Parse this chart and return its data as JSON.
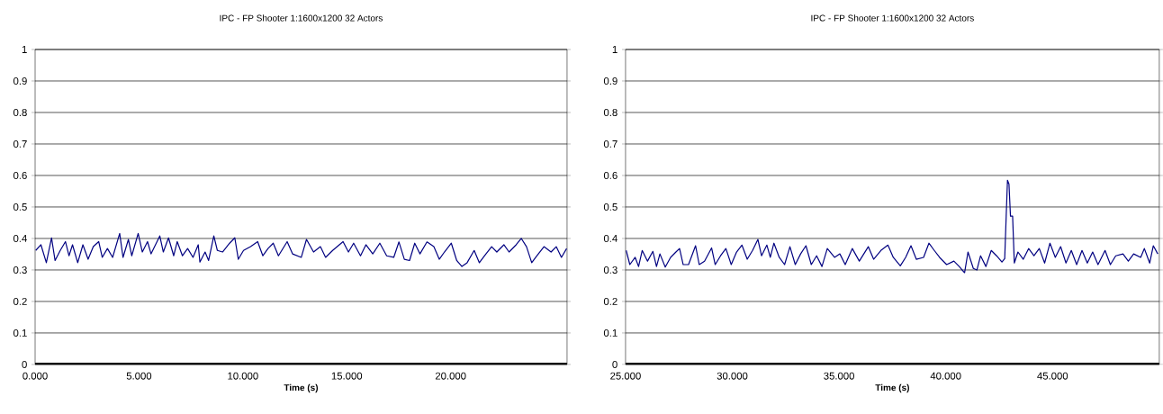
{
  "chart_data": [
    {
      "type": "line",
      "title": "IPC  - FP Shooter 1:1600x1200 32 Actors",
      "xlabel": "Time (s)",
      "grid": "y",
      "marker": "none",
      "line_style": "solid",
      "xlim": [
        0,
        25.6
      ],
      "ylim": [
        0,
        1
      ],
      "xticks": [
        {
          "value": 0,
          "label": "0.000"
        },
        {
          "value": 5,
          "label": "5.000"
        },
        {
          "value": 10,
          "label": "10.000"
        },
        {
          "value": 15,
          "label": "15.000"
        },
        {
          "value": 20,
          "label": "20.000"
        }
      ],
      "yticks": [
        0,
        0.1,
        0.2,
        0.3,
        0.4,
        0.5,
        0.6,
        0.7,
        0.8,
        0.9,
        1
      ],
      "series": [
        {
          "color": "#000080",
          "x": [
            0.03,
            0.28,
            0.54,
            0.79,
            0.96,
            1.21,
            1.46,
            1.63,
            1.8,
            2.05,
            2.3,
            2.55,
            2.8,
            3.06,
            3.23,
            3.48,
            3.73,
            4.07,
            4.23,
            4.49,
            4.65,
            4.96,
            5.16,
            5.41,
            5.58,
            6.0,
            6.17,
            6.42,
            6.67,
            6.84,
            7.09,
            7.34,
            7.6,
            7.85,
            7.93,
            8.18,
            8.35,
            8.6,
            8.77,
            9.02,
            9.36,
            9.61,
            9.78,
            10.03,
            10.37,
            10.71,
            10.96,
            11.21,
            11.46,
            11.71,
            12.13,
            12.39,
            12.81,
            13.06,
            13.4,
            13.73,
            13.98,
            14.32,
            14.82,
            15.08,
            15.33,
            15.66,
            15.92,
            16.25,
            16.59,
            16.92,
            17.26,
            17.51,
            17.77,
            18.02,
            18.27,
            18.52,
            18.86,
            19.19,
            19.45,
            19.7,
            20.03,
            20.29,
            20.54,
            20.79,
            21.13,
            21.38,
            21.63,
            21.97,
            22.22,
            22.56,
            22.81,
            23.15,
            23.4,
            23.65,
            23.9,
            24.15,
            24.49,
            24.83,
            25.08,
            25.33,
            25.58
          ],
          "values": [
            0.362,
            0.38,
            0.323,
            0.402,
            0.33,
            0.362,
            0.39,
            0.345,
            0.38,
            0.323,
            0.38,
            0.334,
            0.374,
            0.39,
            0.34,
            0.368,
            0.34,
            0.416,
            0.34,
            0.397,
            0.345,
            0.416,
            0.357,
            0.39,
            0.351,
            0.408,
            0.357,
            0.402,
            0.345,
            0.39,
            0.345,
            0.368,
            0.34,
            0.38,
            0.325,
            0.357,
            0.33,
            0.408,
            0.362,
            0.357,
            0.385,
            0.402,
            0.334,
            0.362,
            0.374,
            0.39,
            0.345,
            0.368,
            0.385,
            0.345,
            0.39,
            0.351,
            0.34,
            0.397,
            0.357,
            0.374,
            0.34,
            0.362,
            0.39,
            0.357,
            0.385,
            0.345,
            0.38,
            0.351,
            0.385,
            0.345,
            0.34,
            0.389,
            0.334,
            0.33,
            0.385,
            0.351,
            0.389,
            0.374,
            0.334,
            0.357,
            0.385,
            0.33,
            0.311,
            0.323,
            0.362,
            0.323,
            0.345,
            0.374,
            0.357,
            0.38,
            0.357,
            0.38,
            0.4,
            0.374,
            0.323,
            0.345,
            0.374,
            0.357,
            0.374,
            0.34,
            0.368
          ]
        }
      ]
    },
    {
      "type": "line",
      "title": "IPC  - FP Shooter 1:1600x1200 32 Actors",
      "xlabel": "Time (s)",
      "grid": "y",
      "marker": "none",
      "line_style": "solid",
      "xlim": [
        25,
        50
      ],
      "ylim": [
        0,
        1
      ],
      "xticks": [
        {
          "value": 25,
          "label": "25.000"
        },
        {
          "value": 30,
          "label": "30.000"
        },
        {
          "value": 35,
          "label": "35.000"
        },
        {
          "value": 40,
          "label": "40.000"
        },
        {
          "value": 45,
          "label": "45.000"
        }
      ],
      "yticks": [
        0,
        0.1,
        0.2,
        0.3,
        0.4,
        0.5,
        0.6,
        0.7,
        0.8,
        0.9,
        1
      ],
      "series": [
        {
          "color": "#000080",
          "x": [
            25.03,
            25.2,
            25.45,
            25.61,
            25.78,
            26.03,
            26.28,
            26.45,
            26.61,
            26.86,
            27.11,
            27.36,
            27.53,
            27.7,
            27.95,
            28.28,
            28.45,
            28.7,
            29.03,
            29.2,
            29.45,
            29.7,
            29.95,
            30.2,
            30.45,
            30.7,
            30.95,
            31.2,
            31.37,
            31.62,
            31.78,
            31.95,
            32.2,
            32.45,
            32.7,
            32.95,
            33.2,
            33.45,
            33.7,
            33.95,
            34.2,
            34.45,
            34.79,
            35.04,
            35.29,
            35.62,
            35.95,
            36.37,
            36.62,
            36.96,
            37.29,
            37.54,
            37.87,
            38.12,
            38.37,
            38.62,
            38.96,
            39.21,
            39.46,
            39.71,
            40.04,
            40.38,
            40.63,
            40.88,
            41.04,
            41.29,
            41.46,
            41.63,
            41.88,
            42.13,
            42.38,
            42.63,
            42.76,
            42.83,
            42.89,
            42.96,
            43.03,
            43.13,
            43.21,
            43.38,
            43.63,
            43.88,
            44.13,
            44.38,
            44.63,
            44.88,
            45.13,
            45.38,
            45.63,
            45.88,
            46.13,
            46.38,
            46.63,
            46.88,
            47.13,
            47.46,
            47.71,
            47.96,
            48.3,
            48.55,
            48.8,
            49.13,
            49.3,
            49.55,
            49.72,
            49.93
          ],
          "values": [
            0.362,
            0.317,
            0.34,
            0.311,
            0.362,
            0.328,
            0.359,
            0.311,
            0.351,
            0.309,
            0.34,
            0.357,
            0.368,
            0.317,
            0.317,
            0.377,
            0.317,
            0.328,
            0.37,
            0.317,
            0.345,
            0.368,
            0.317,
            0.357,
            0.379,
            0.334,
            0.362,
            0.397,
            0.345,
            0.379,
            0.34,
            0.385,
            0.34,
            0.317,
            0.374,
            0.317,
            0.351,
            0.377,
            0.317,
            0.345,
            0.311,
            0.368,
            0.34,
            0.351,
            0.317,
            0.368,
            0.328,
            0.374,
            0.334,
            0.362,
            0.379,
            0.34,
            0.313,
            0.34,
            0.377,
            0.334,
            0.34,
            0.385,
            0.362,
            0.34,
            0.317,
            0.328,
            0.311,
            0.291,
            0.357,
            0.305,
            0.3,
            0.345,
            0.311,
            0.362,
            0.345,
            0.325,
            0.336,
            0.471,
            0.585,
            0.573,
            0.471,
            0.471,
            0.322,
            0.357,
            0.334,
            0.368,
            0.345,
            0.368,
            0.322,
            0.385,
            0.34,
            0.374,
            0.322,
            0.362,
            0.317,
            0.362,
            0.322,
            0.357,
            0.317,
            0.362,
            0.317,
            0.345,
            0.351,
            0.328,
            0.351,
            0.34,
            0.368,
            0.322,
            0.377,
            0.351
          ]
        }
      ]
    }
  ]
}
